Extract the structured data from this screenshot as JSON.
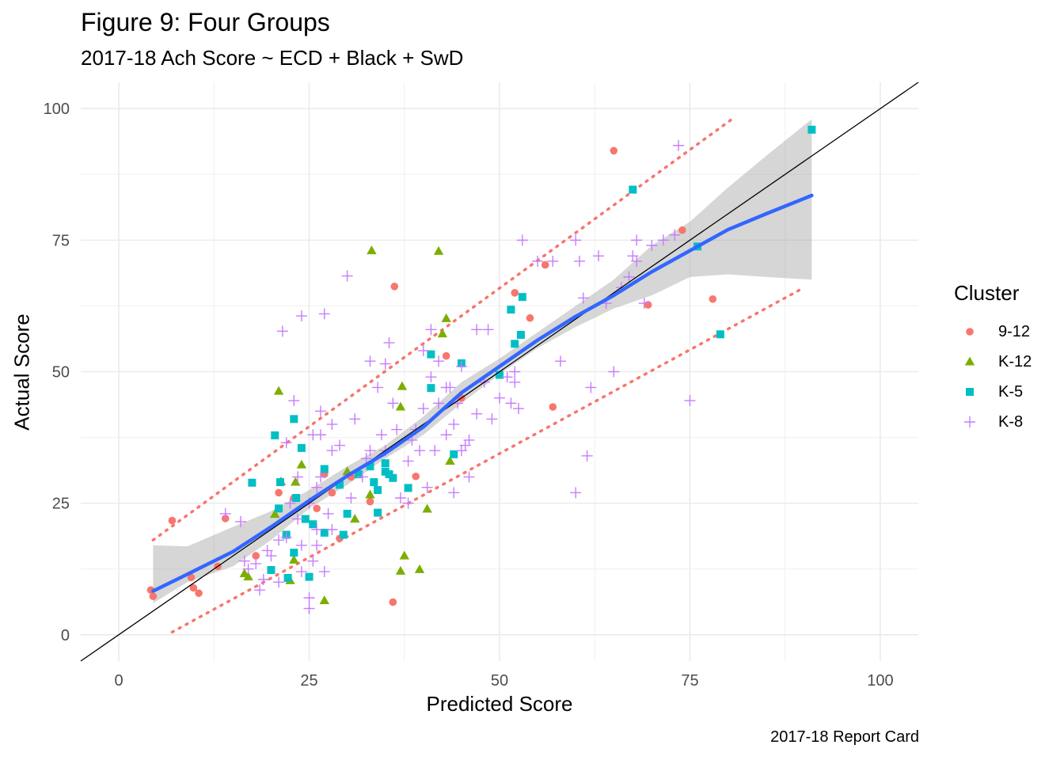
{
  "title": "Figure 9: Four Groups",
  "subtitle": "2017-18 Ach Score ~ ECD + Black + SwD",
  "caption": "2017-18 Report Card",
  "chart_data": {
    "type": "scatter",
    "title": "Figure 9: Four Groups",
    "subtitle": "2017-18 Ach Score ~ ECD + Black + SwD",
    "xlabel": "Predicted Score",
    "ylabel": "Actual Score",
    "caption": "2017-18 Report Card",
    "xlim": [
      -5,
      105
    ],
    "ylim": [
      -5,
      105
    ],
    "x_ticks": [
      0,
      25,
      50,
      75,
      100
    ],
    "y_ticks": [
      0,
      25,
      50,
      75,
      100
    ],
    "x_tick_labels": [
      "0",
      "25",
      "50",
      "75",
      "100"
    ],
    "y_tick_labels": [
      "0",
      "25",
      "50",
      "75",
      "100"
    ],
    "grid": true,
    "legend": {
      "title": "Cluster",
      "position": "right"
    },
    "series": [
      {
        "name": "9-12",
        "shape": "circle",
        "color": "#F8766D",
        "points": [
          [
            4.2,
            8.5
          ],
          [
            4.5,
            7.3
          ],
          [
            7,
            21.7
          ],
          [
            9.5,
            10.9
          ],
          [
            9.8,
            8.9
          ],
          [
            10.5,
            7.9
          ],
          [
            13,
            13
          ],
          [
            14,
            22.1
          ],
          [
            18,
            15
          ],
          [
            21,
            27
          ],
          [
            23,
            26
          ],
          [
            26,
            24
          ],
          [
            27,
            30.5
          ],
          [
            28,
            27
          ],
          [
            29,
            18.3
          ],
          [
            30.5,
            30
          ],
          [
            33,
            25.3
          ],
          [
            36,
            6.2
          ],
          [
            36.2,
            66.2
          ],
          [
            39,
            30.1
          ],
          [
            43,
            53
          ],
          [
            45,
            45
          ],
          [
            52,
            65
          ],
          [
            54,
            60.2
          ],
          [
            56,
            70.3
          ],
          [
            57,
            43.3
          ],
          [
            65,
            92
          ],
          [
            69.5,
            62.7
          ],
          [
            74,
            76.9
          ],
          [
            78,
            63.8
          ]
        ]
      },
      {
        "name": "K-12",
        "shape": "triangle",
        "color": "#7CAE00",
        "points": [
          [
            16.5,
            11.6
          ],
          [
            17,
            11
          ],
          [
            20.5,
            22.9
          ],
          [
            21,
            46.3
          ],
          [
            21.3,
            29.1
          ],
          [
            22.5,
            10.3
          ],
          [
            23,
            14.2
          ],
          [
            23.2,
            29
          ],
          [
            24,
            32.3
          ],
          [
            27,
            6.5
          ],
          [
            30,
            31
          ],
          [
            31,
            22
          ],
          [
            33,
            26.6
          ],
          [
            33.2,
            73
          ],
          [
            37,
            12.1
          ],
          [
            37.2,
            47.2
          ],
          [
            37.5,
            15
          ],
          [
            37,
            43.3
          ],
          [
            39.5,
            12.4
          ],
          [
            40.5,
            23.9
          ],
          [
            42,
            72.9
          ],
          [
            42.5,
            57.2
          ],
          [
            43,
            60.1
          ],
          [
            43.5,
            33
          ]
        ]
      },
      {
        "name": "K-5",
        "shape": "square",
        "color": "#00BFC4",
        "points": [
          [
            17.5,
            28.9
          ],
          [
            20,
            12.3
          ],
          [
            20.5,
            37.9
          ],
          [
            21,
            24
          ],
          [
            21.2,
            29
          ],
          [
            22,
            19
          ],
          [
            22.2,
            10.8
          ],
          [
            23,
            41
          ],
          [
            23.3,
            26
          ],
          [
            23,
            15.6
          ],
          [
            24,
            35.5
          ],
          [
            24.5,
            22
          ],
          [
            25,
            11
          ],
          [
            25.5,
            21
          ],
          [
            27,
            31.5
          ],
          [
            27,
            19.4
          ],
          [
            29,
            28.5
          ],
          [
            29.5,
            19
          ],
          [
            30,
            23
          ],
          [
            31.5,
            30.5
          ],
          [
            33,
            32
          ],
          [
            33.5,
            29
          ],
          [
            34,
            27.5
          ],
          [
            34,
            23.2
          ],
          [
            35,
            31
          ],
          [
            35,
            32.6
          ],
          [
            35.5,
            30.5
          ],
          [
            36,
            29.8
          ],
          [
            38,
            27.9
          ],
          [
            41,
            53.3
          ],
          [
            41,
            46.9
          ],
          [
            44,
            34.3
          ],
          [
            45,
            51.6
          ],
          [
            50,
            49.4
          ],
          [
            51.5,
            61.8
          ],
          [
            52,
            55.3
          ],
          [
            52.8,
            57
          ],
          [
            53,
            64.2
          ],
          [
            67.5,
            84.6
          ],
          [
            76,
            73.8
          ],
          [
            79,
            57.1
          ],
          [
            91,
            96
          ]
        ]
      },
      {
        "name": "K-8",
        "shape": "plus",
        "color": "#C77CFF",
        "points": [
          [
            14,
            23
          ],
          [
            16,
            21.5
          ],
          [
            16.5,
            14
          ],
          [
            17,
            12.5
          ],
          [
            18,
            13.5
          ],
          [
            18.5,
            8.5
          ],
          [
            19,
            10.5
          ],
          [
            19.5,
            16
          ],
          [
            20,
            15
          ],
          [
            21,
            18
          ],
          [
            21,
            10
          ],
          [
            21.5,
            57.7
          ],
          [
            22,
            18.5
          ],
          [
            22,
            36.5
          ],
          [
            22.5,
            25
          ],
          [
            23,
            44.5
          ],
          [
            23.5,
            30
          ],
          [
            23.5,
            22
          ],
          [
            24,
            60.6
          ],
          [
            24,
            17
          ],
          [
            24,
            12
          ],
          [
            25,
            25
          ],
          [
            25,
            7
          ],
          [
            25,
            5
          ],
          [
            25.5,
            38
          ],
          [
            25.5,
            14
          ],
          [
            26,
            28
          ],
          [
            26,
            20
          ],
          [
            26,
            17
          ],
          [
            26.5,
            42.5
          ],
          [
            26.5,
            38
          ],
          [
            26.5,
            30
          ],
          [
            27,
            61
          ],
          [
            27,
            12
          ],
          [
            27.5,
            23
          ],
          [
            28,
            40
          ],
          [
            28,
            35
          ],
          [
            28,
            20
          ],
          [
            29,
            36
          ],
          [
            30,
            68.2
          ],
          [
            30.5,
            26
          ],
          [
            31,
            41
          ],
          [
            32,
            30
          ],
          [
            32.5,
            33.5
          ],
          [
            33,
            52
          ],
          [
            33,
            35
          ],
          [
            34,
            47
          ],
          [
            34.5,
            38
          ],
          [
            35,
            51.5
          ],
          [
            35,
            35
          ],
          [
            35.5,
            55.5
          ],
          [
            36,
            44
          ],
          [
            36.5,
            39
          ],
          [
            37,
            26
          ],
          [
            38,
            33
          ],
          [
            38,
            25
          ],
          [
            38.5,
            37
          ],
          [
            39,
            39
          ],
          [
            39.5,
            35
          ],
          [
            40,
            43
          ],
          [
            40,
            54
          ],
          [
            40.5,
            28
          ],
          [
            41,
            58
          ],
          [
            41,
            49
          ],
          [
            41.5,
            35
          ],
          [
            42,
            52
          ],
          [
            42,
            44
          ],
          [
            43,
            47
          ],
          [
            43,
            38
          ],
          [
            43.5,
            47
          ],
          [
            44,
            40
          ],
          [
            44,
            27
          ],
          [
            44.5,
            44
          ],
          [
            45,
            35
          ],
          [
            45,
            51
          ],
          [
            45.5,
            36
          ],
          [
            46,
            37
          ],
          [
            46,
            30
          ],
          [
            47,
            58
          ],
          [
            47,
            42
          ],
          [
            48,
            48
          ],
          [
            48.5,
            58
          ],
          [
            49,
            41
          ],
          [
            50,
            45
          ],
          [
            51,
            49
          ],
          [
            51.5,
            44
          ],
          [
            52,
            50
          ],
          [
            52,
            48
          ],
          [
            52.5,
            43
          ],
          [
            53,
            75
          ],
          [
            55,
            71
          ],
          [
            57,
            71
          ],
          [
            58,
            52
          ],
          [
            60,
            75
          ],
          [
            60,
            27
          ],
          [
            60.5,
            71
          ],
          [
            61,
            64
          ],
          [
            61.5,
            34
          ],
          [
            62,
            47
          ],
          [
            63,
            72
          ],
          [
            64,
            63
          ],
          [
            65,
            50
          ],
          [
            66,
            66
          ],
          [
            67,
            68
          ],
          [
            67.5,
            72
          ],
          [
            68,
            75
          ],
          [
            68,
            71
          ],
          [
            69,
            63
          ],
          [
            70,
            74
          ],
          [
            71.5,
            75
          ],
          [
            73,
            76
          ],
          [
            73.5,
            93
          ],
          [
            75,
            44.5
          ]
        ]
      }
    ],
    "reference_line": {
      "label": "y = x",
      "color": "#000000"
    },
    "smooth": {
      "method": "loess",
      "color": "#3366FF",
      "x": [
        4.5,
        9,
        15,
        20,
        25,
        30,
        35,
        40,
        45,
        50,
        55,
        60,
        65,
        70,
        75,
        80,
        85,
        91
      ],
      "y": [
        8.3,
        11.5,
        15.8,
        20.5,
        25.5,
        30.2,
        34.5,
        39.5,
        46,
        51,
        56,
        60.5,
        64.5,
        69,
        73,
        77,
        80,
        83.5
      ],
      "lo": [
        6,
        10,
        13,
        18,
        24,
        28.5,
        33.5,
        38,
        44,
        49.5,
        54.5,
        58.5,
        62,
        64.5,
        68,
        68.5,
        68,
        67.5
      ],
      "hi": [
        17,
        16.8,
        20.5,
        23.5,
        27.5,
        32,
        36,
        41.5,
        48,
        52.5,
        57.5,
        62.5,
        67.5,
        74,
        78.5,
        85,
        91,
        98
      ]
    },
    "prediction_bands": {
      "color": "#F8766D",
      "style": "dotted",
      "upper": {
        "x": [
          4.5,
          81
        ],
        "y": [
          18,
          98.5
        ]
      },
      "lower": {
        "x": [
          7,
          90
        ],
        "y": [
          0.5,
          66
        ]
      }
    }
  }
}
